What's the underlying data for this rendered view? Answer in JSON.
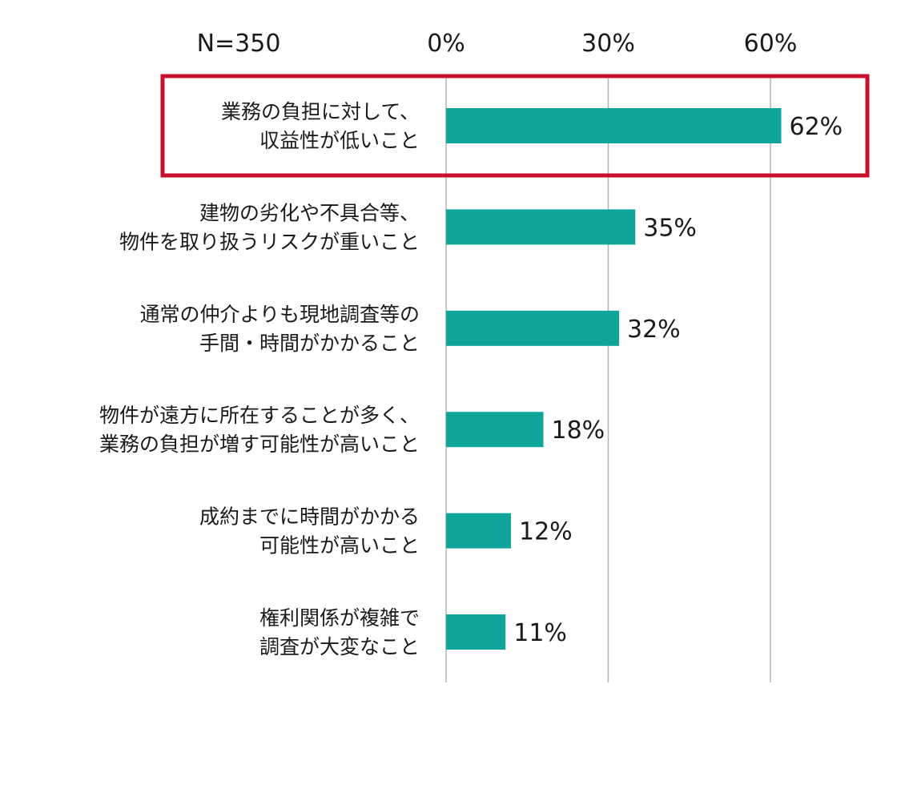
{
  "sample_size_label": "N=350",
  "colors": {
    "bar": "#0fa59b",
    "grid": "#b3b3b3",
    "highlight_border": "#c8102e",
    "text": "#1a1a1a"
  },
  "chart_data": {
    "type": "bar",
    "orientation": "horizontal",
    "title": "",
    "xlabel": "",
    "ylabel": "",
    "xlim": [
      0,
      60
    ],
    "x_ticks": [
      0,
      30,
      60
    ],
    "x_tick_labels": [
      "0%",
      "30%",
      "60%"
    ],
    "grid": true,
    "legend": "none",
    "highlighted_category_index": 0,
    "categories": [
      [
        "業務の負担に対して、",
        "収益性が低いこと"
      ],
      [
        "建物の劣化や不具合等、",
        "物件を取り扱うリスクが重いこと"
      ],
      [
        "通常の仲介よりも現地調査等の",
        "手間・時間がかかること"
      ],
      [
        "物件が遠方に所在することが多く、",
        "業務の負担が増す可能性が高いこと"
      ],
      [
        "成約までに時間がかかる",
        "可能性が高いこと"
      ],
      [
        "権利関係が複雑で",
        "調査が大変なこと"
      ]
    ],
    "values": [
      62,
      35,
      32,
      18,
      12,
      11
    ],
    "value_labels": [
      "62%",
      "35%",
      "32%",
      "18%",
      "12%",
      "11%"
    ]
  }
}
